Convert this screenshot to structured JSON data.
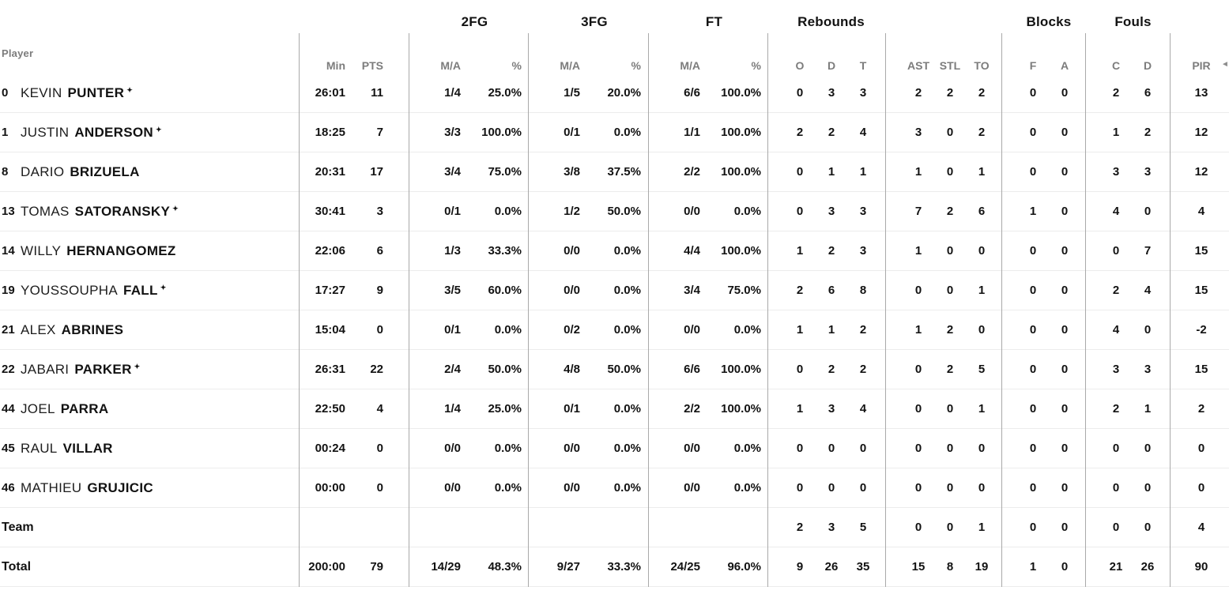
{
  "table": {
    "player_col_label": "Player",
    "starter_marker": "✦",
    "sort_icon": "◄",
    "header": {
      "groups": [
        "2FG",
        "3FG",
        "FT",
        "Rebounds",
        "Blocks",
        "Fouls"
      ],
      "min": "Min",
      "pts": "PTS",
      "ma": "M/A",
      "pct": "%",
      "o": "O",
      "d": "D",
      "t": "T",
      "ast": "AST",
      "stl": "STL",
      "to": "TO",
      "f": "F",
      "a": "A",
      "c": "C",
      "d2": "D",
      "pir": "PIR"
    },
    "rows": [
      {
        "num": "0",
        "first": "KEVIN",
        "last": "PUNTER",
        "starter": true,
        "min": "26:01",
        "pts": "11",
        "fg2_ma": "1/4",
        "fg2_pct": "25.0%",
        "fg3_ma": "1/5",
        "fg3_pct": "20.0%",
        "ft_ma": "6/6",
        "ft_pct": "100.0%",
        "reb_o": "0",
        "reb_d": "3",
        "reb_t": "3",
        "ast": "2",
        "stl": "2",
        "to": "2",
        "blk_f": "0",
        "blk_a": "0",
        "foul_c": "2",
        "foul_d": "6",
        "pir": "13"
      },
      {
        "num": "1",
        "first": "JUSTIN",
        "last": "ANDERSON",
        "starter": true,
        "min": "18:25",
        "pts": "7",
        "fg2_ma": "3/3",
        "fg2_pct": "100.0%",
        "fg3_ma": "0/1",
        "fg3_pct": "0.0%",
        "ft_ma": "1/1",
        "ft_pct": "100.0%",
        "reb_o": "2",
        "reb_d": "2",
        "reb_t": "4",
        "ast": "3",
        "stl": "0",
        "to": "2",
        "blk_f": "0",
        "blk_a": "0",
        "foul_c": "1",
        "foul_d": "2",
        "pir": "12"
      },
      {
        "num": "8",
        "first": "DARIO",
        "last": "BRIZUELA",
        "starter": false,
        "min": "20:31",
        "pts": "17",
        "fg2_ma": "3/4",
        "fg2_pct": "75.0%",
        "fg3_ma": "3/8",
        "fg3_pct": "37.5%",
        "ft_ma": "2/2",
        "ft_pct": "100.0%",
        "reb_o": "0",
        "reb_d": "1",
        "reb_t": "1",
        "ast": "1",
        "stl": "0",
        "to": "1",
        "blk_f": "0",
        "blk_a": "0",
        "foul_c": "3",
        "foul_d": "3",
        "pir": "12"
      },
      {
        "num": "13",
        "first": "TOMAS",
        "last": "SATORANSKY",
        "starter": true,
        "min": "30:41",
        "pts": "3",
        "fg2_ma": "0/1",
        "fg2_pct": "0.0%",
        "fg3_ma": "1/2",
        "fg3_pct": "50.0%",
        "ft_ma": "0/0",
        "ft_pct": "0.0%",
        "reb_o": "0",
        "reb_d": "3",
        "reb_t": "3",
        "ast": "7",
        "stl": "2",
        "to": "6",
        "blk_f": "1",
        "blk_a": "0",
        "foul_c": "4",
        "foul_d": "0",
        "pir": "4"
      },
      {
        "num": "14",
        "first": "WILLY",
        "last": "HERNANGOMEZ",
        "starter": false,
        "min": "22:06",
        "pts": "6",
        "fg2_ma": "1/3",
        "fg2_pct": "33.3%",
        "fg3_ma": "0/0",
        "fg3_pct": "0.0%",
        "ft_ma": "4/4",
        "ft_pct": "100.0%",
        "reb_o": "1",
        "reb_d": "2",
        "reb_t": "3",
        "ast": "1",
        "stl": "0",
        "to": "0",
        "blk_f": "0",
        "blk_a": "0",
        "foul_c": "0",
        "foul_d": "7",
        "pir": "15"
      },
      {
        "num": "19",
        "first": "YOUSSOUPHA",
        "last": "FALL",
        "starter": true,
        "min": "17:27",
        "pts": "9",
        "fg2_ma": "3/5",
        "fg2_pct": "60.0%",
        "fg3_ma": "0/0",
        "fg3_pct": "0.0%",
        "ft_ma": "3/4",
        "ft_pct": "75.0%",
        "reb_o": "2",
        "reb_d": "6",
        "reb_t": "8",
        "ast": "0",
        "stl": "0",
        "to": "1",
        "blk_f": "0",
        "blk_a": "0",
        "foul_c": "2",
        "foul_d": "4",
        "pir": "15"
      },
      {
        "num": "21",
        "first": "ALEX",
        "last": "ABRINES",
        "starter": false,
        "min": "15:04",
        "pts": "0",
        "fg2_ma": "0/1",
        "fg2_pct": "0.0%",
        "fg3_ma": "0/2",
        "fg3_pct": "0.0%",
        "ft_ma": "0/0",
        "ft_pct": "0.0%",
        "reb_o": "1",
        "reb_d": "1",
        "reb_t": "2",
        "ast": "1",
        "stl": "2",
        "to": "0",
        "blk_f": "0",
        "blk_a": "0",
        "foul_c": "4",
        "foul_d": "0",
        "pir": "-2"
      },
      {
        "num": "22",
        "first": "JABARI",
        "last": "PARKER",
        "starter": true,
        "min": "26:31",
        "pts": "22",
        "fg2_ma": "2/4",
        "fg2_pct": "50.0%",
        "fg3_ma": "4/8",
        "fg3_pct": "50.0%",
        "ft_ma": "6/6",
        "ft_pct": "100.0%",
        "reb_o": "0",
        "reb_d": "2",
        "reb_t": "2",
        "ast": "0",
        "stl": "2",
        "to": "5",
        "blk_f": "0",
        "blk_a": "0",
        "foul_c": "3",
        "foul_d": "3",
        "pir": "15"
      },
      {
        "num": "44",
        "first": "JOEL",
        "last": "PARRA",
        "starter": false,
        "min": "22:50",
        "pts": "4",
        "fg2_ma": "1/4",
        "fg2_pct": "25.0%",
        "fg3_ma": "0/1",
        "fg3_pct": "0.0%",
        "ft_ma": "2/2",
        "ft_pct": "100.0%",
        "reb_o": "1",
        "reb_d": "3",
        "reb_t": "4",
        "ast": "0",
        "stl": "0",
        "to": "1",
        "blk_f": "0",
        "blk_a": "0",
        "foul_c": "2",
        "foul_d": "1",
        "pir": "2"
      },
      {
        "num": "45",
        "first": "RAUL",
        "last": "VILLAR",
        "starter": false,
        "min": "00:24",
        "pts": "0",
        "fg2_ma": "0/0",
        "fg2_pct": "0.0%",
        "fg3_ma": "0/0",
        "fg3_pct": "0.0%",
        "ft_ma": "0/0",
        "ft_pct": "0.0%",
        "reb_o": "0",
        "reb_d": "0",
        "reb_t": "0",
        "ast": "0",
        "stl": "0",
        "to": "0",
        "blk_f": "0",
        "blk_a": "0",
        "foul_c": "0",
        "foul_d": "0",
        "pir": "0"
      },
      {
        "num": "46",
        "first": "MATHIEU",
        "last": "GRUJICIC",
        "starter": false,
        "min": "00:00",
        "pts": "0",
        "fg2_ma": "0/0",
        "fg2_pct": "0.0%",
        "fg3_ma": "0/0",
        "fg3_pct": "0.0%",
        "ft_ma": "0/0",
        "ft_pct": "0.0%",
        "reb_o": "0",
        "reb_d": "0",
        "reb_t": "0",
        "ast": "0",
        "stl": "0",
        "to": "0",
        "blk_f": "0",
        "blk_a": "0",
        "foul_c": "0",
        "foul_d": "0",
        "pir": "0"
      },
      {
        "label": "Team",
        "reb_o": "2",
        "reb_d": "3",
        "reb_t": "5",
        "ast": "0",
        "stl": "0",
        "to": "1",
        "blk_f": "0",
        "blk_a": "0",
        "foul_c": "0",
        "foul_d": "0",
        "pir": "4"
      },
      {
        "label": "Total",
        "min": "200:00",
        "pts": "79",
        "fg2_ma": "14/29",
        "fg2_pct": "48.3%",
        "fg3_ma": "9/27",
        "fg3_pct": "33.3%",
        "ft_ma": "24/25",
        "ft_pct": "96.0%",
        "reb_o": "9",
        "reb_d": "26",
        "reb_t": "35",
        "ast": "15",
        "stl": "8",
        "to": "19",
        "blk_f": "1",
        "blk_a": "0",
        "foul_c": "21",
        "foul_d": "26",
        "pir": "90"
      }
    ]
  },
  "colors": {
    "text": "#121212",
    "muted_header": "#7c7c7c",
    "group_divider": "#a9a9a9",
    "row_line": "#ececec",
    "background": "#ffffff"
  }
}
